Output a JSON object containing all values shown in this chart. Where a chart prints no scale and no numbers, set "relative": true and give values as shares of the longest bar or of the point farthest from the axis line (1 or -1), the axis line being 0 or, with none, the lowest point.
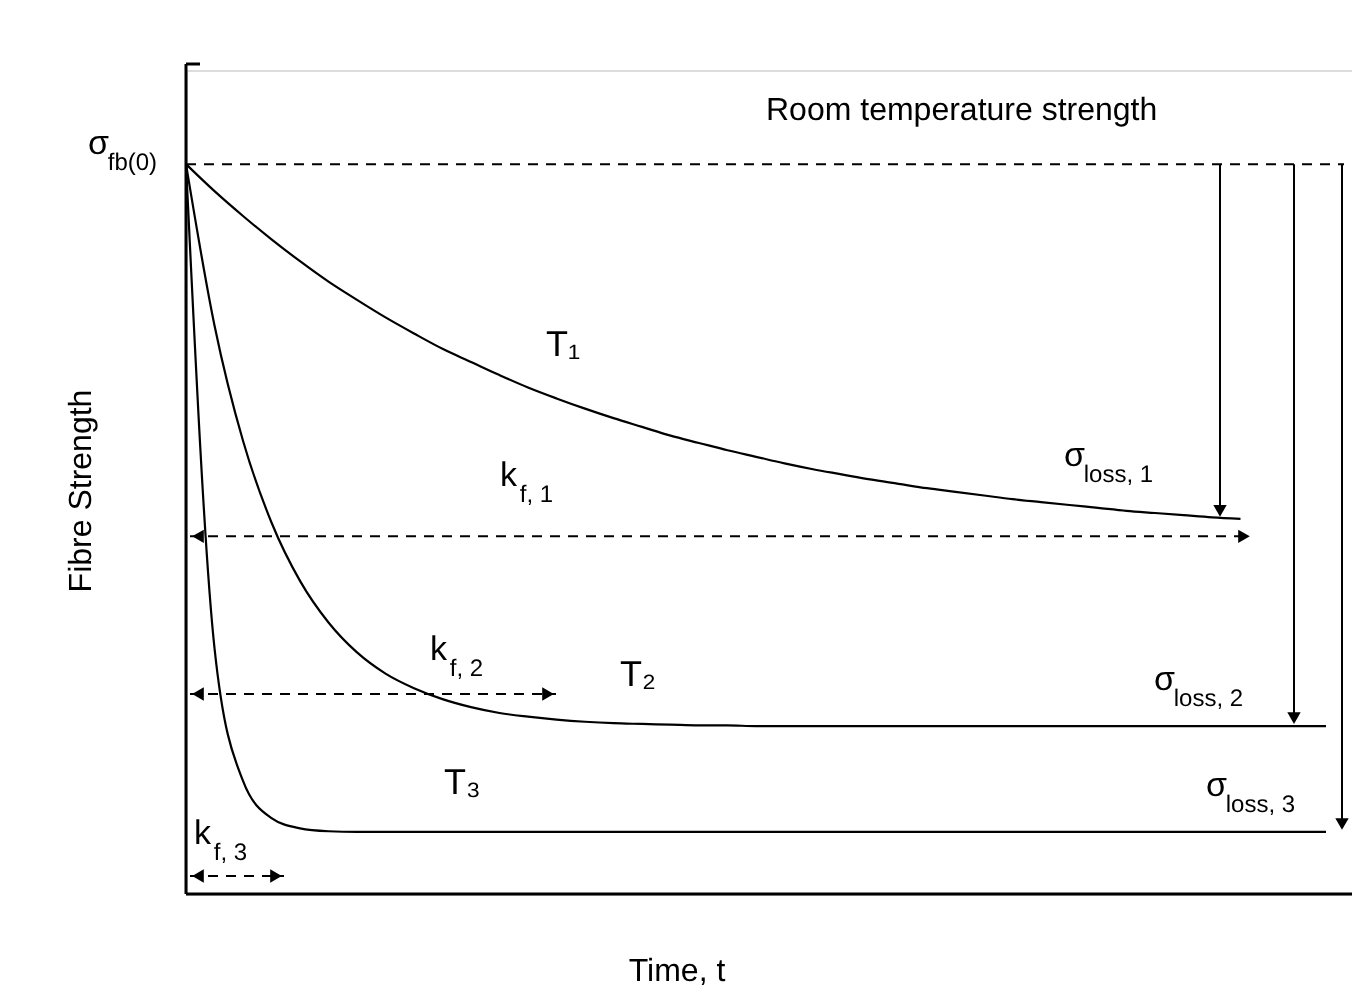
{
  "chart_data": {
    "type": "line",
    "relative": true,
    "xlabel": "Time, t",
    "ylabel": "Fibre Strength",
    "categories": [
      null,
      null,
      null,
      null,
      null,
      null,
      null,
      null,
      null,
      null,
      null,
      null,
      null,
      null,
      null,
      null,
      null,
      null,
      null,
      null,
      null,
      null,
      null,
      null,
      null,
      null,
      null,
      null,
      null,
      null,
      null,
      null,
      null,
      null,
      null,
      null,
      null,
      null,
      null,
      null,
      null
    ],
    "series": [
      {
        "name": "T₁",
        "color": "#000000",
        "values": [
          1.0,
          0.963,
          0.929,
          0.897,
          0.867,
          0.839,
          0.814,
          0.79,
          0.768,
          0.747,
          0.729,
          0.711,
          0.694,
          0.679,
          0.665,
          0.652,
          0.64,
          0.628,
          0.618,
          0.608,
          0.599,
          0.59,
          0.582,
          0.575,
          0.568,
          0.562,
          0.556,
          0.551,
          0.546,
          0.541,
          0.537,
          0.533,
          0.529,
          0.525,
          0.522,
          0.519,
          0.516,
          0.514,
          null,
          null,
          null
        ]
      },
      {
        "name": "T₂",
        "color": "#000000",
        "values": [
          1.0,
          0.779,
          0.621,
          0.509,
          0.429,
          0.372,
          0.331,
          0.302,
          0.282,
          0.267,
          0.256,
          0.248,
          0.243,
          0.239,
          0.236,
          0.234,
          0.233,
          0.232,
          0.231,
          0.231,
          0.23,
          0.23,
          0.23,
          0.23,
          0.23,
          0.23,
          0.23,
          0.23,
          0.23,
          0.23,
          0.23,
          0.23,
          0.23,
          0.23,
          0.23,
          0.23,
          0.23,
          0.23,
          0.23,
          0.23,
          0.23
        ]
      },
      {
        "name": "T₃",
        "color": "#000000",
        "values": [
          1.0,
          0.337,
          0.155,
          0.104,
          0.09,
          0.086,
          0.085,
          0.085,
          0.085,
          0.085,
          0.085,
          0.085,
          0.085,
          0.085,
          0.085,
          0.085,
          0.085,
          0.085,
          0.085,
          0.085,
          0.085,
          0.085,
          0.085,
          0.085,
          0.085,
          0.085,
          0.085,
          0.085,
          0.085,
          0.085,
          0.085,
          0.085,
          0.085,
          0.085,
          0.085,
          0.085,
          0.085,
          0.085,
          0.085,
          0.085,
          0.085
        ]
      }
    ],
    "ref_lines": [
      {
        "axis": "y",
        "value": 1.0,
        "label": "Room temperature strength",
        "color": "#000000",
        "line_style": "dashed"
      },
      {
        "axis": "y",
        "value": 0.49,
        "label": "k$_{f, 1}$",
        "color": "#000000",
        "line_style": "dashed"
      }
    ],
    "annotations": [
      "σ$_{fb(0)}$",
      "k$_{f, 2}$",
      "k$_{f, 3}$",
      "σ$_{loss, 1}$",
      "σ$_{loss, 2}$",
      "σ$_{loss, 3}$"
    ]
  }
}
